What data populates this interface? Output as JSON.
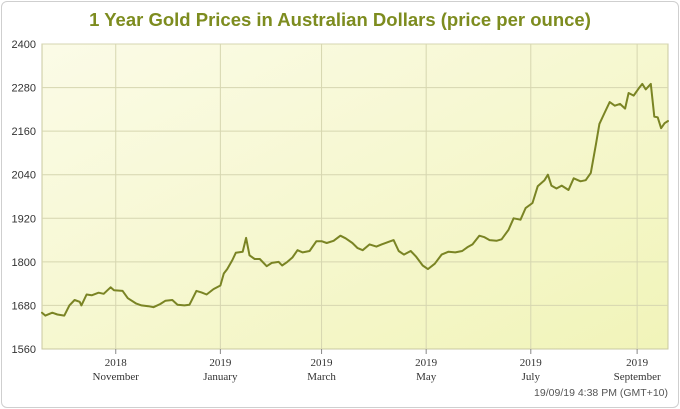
{
  "chart_data": {
    "type": "line",
    "title": "1 Year Gold Prices in Australian Dollars (price per ounce)",
    "xlabel": "",
    "ylabel": "",
    "ylim": [
      1560,
      2400
    ],
    "yticks": [
      1560,
      1680,
      1800,
      1920,
      2040,
      2160,
      2280,
      2400
    ],
    "xticks": [
      {
        "year": "2018",
        "month": "November",
        "date": "2018-11-01"
      },
      {
        "year": "2019",
        "month": "January",
        "date": "2019-01-01"
      },
      {
        "year": "2019",
        "month": "March",
        "date": "2019-03-01"
      },
      {
        "year": "2019",
        "month": "May",
        "date": "2019-05-01"
      },
      {
        "year": "2019",
        "month": "July",
        "date": "2019-07-01"
      },
      {
        "year": "2019",
        "month": "September",
        "date": "2019-09-01"
      }
    ],
    "xlim": [
      "2018-09-19",
      "2019-09-19"
    ],
    "grid": true,
    "line_color": "#7a8424",
    "series": [
      {
        "name": "",
        "points": [
          [
            "2018-09-19",
            1660
          ],
          [
            "2018-09-21",
            1652
          ],
          [
            "2018-09-25",
            1660
          ],
          [
            "2018-09-28",
            1655
          ],
          [
            "2018-10-02",
            1652
          ],
          [
            "2018-10-05",
            1680
          ],
          [
            "2018-10-08",
            1695
          ],
          [
            "2018-10-11",
            1690
          ],
          [
            "2018-10-12",
            1680
          ],
          [
            "2018-10-15",
            1710
          ],
          [
            "2018-10-18",
            1708
          ],
          [
            "2018-10-22",
            1715
          ],
          [
            "2018-10-25",
            1712
          ],
          [
            "2018-10-29",
            1730
          ],
          [
            "2018-10-31",
            1722
          ],
          [
            "2018-11-05",
            1720
          ],
          [
            "2018-11-08",
            1700
          ],
          [
            "2018-11-13",
            1685
          ],
          [
            "2018-11-16",
            1680
          ],
          [
            "2018-11-20",
            1678
          ],
          [
            "2018-11-23",
            1675
          ],
          [
            "2018-11-27",
            1684
          ],
          [
            "2018-11-30",
            1693
          ],
          [
            "2018-12-04",
            1695
          ],
          [
            "2018-12-07",
            1682
          ],
          [
            "2018-12-11",
            1680
          ],
          [
            "2018-12-14",
            1682
          ],
          [
            "2018-12-18",
            1720
          ],
          [
            "2018-12-21",
            1716
          ],
          [
            "2018-12-24",
            1710
          ],
          [
            "2018-12-28",
            1725
          ],
          [
            "2019-01-01",
            1735
          ],
          [
            "2019-01-03",
            1768
          ],
          [
            "2019-01-05",
            1780
          ],
          [
            "2019-01-08",
            1805
          ],
          [
            "2019-01-10",
            1825
          ],
          [
            "2019-01-14",
            1828
          ],
          [
            "2019-01-16",
            1866
          ],
          [
            "2019-01-18",
            1818
          ],
          [
            "2019-01-21",
            1808
          ],
          [
            "2019-01-24",
            1808
          ],
          [
            "2019-01-28",
            1788
          ],
          [
            "2019-01-31",
            1797
          ],
          [
            "2019-02-04",
            1800
          ],
          [
            "2019-02-06",
            1790
          ],
          [
            "2019-02-09",
            1800
          ],
          [
            "2019-02-12",
            1812
          ],
          [
            "2019-02-15",
            1832
          ],
          [
            "2019-02-18",
            1826
          ],
          [
            "2019-02-22",
            1830
          ],
          [
            "2019-02-26",
            1857
          ],
          [
            "2019-03-01",
            1857
          ],
          [
            "2019-03-04",
            1852
          ],
          [
            "2019-03-08",
            1858
          ],
          [
            "2019-03-12",
            1872
          ],
          [
            "2019-03-15",
            1865
          ],
          [
            "2019-03-19",
            1852
          ],
          [
            "2019-03-22",
            1838
          ],
          [
            "2019-03-25",
            1832
          ],
          [
            "2019-03-29",
            1848
          ],
          [
            "2019-04-02",
            1842
          ],
          [
            "2019-04-05",
            1848
          ],
          [
            "2019-04-09",
            1855
          ],
          [
            "2019-04-12",
            1860
          ],
          [
            "2019-04-15",
            1830
          ],
          [
            "2019-04-18",
            1820
          ],
          [
            "2019-04-22",
            1830
          ],
          [
            "2019-04-25",
            1815
          ],
          [
            "2019-04-29",
            1790
          ],
          [
            "2019-05-02",
            1780
          ],
          [
            "2019-05-06",
            1795
          ],
          [
            "2019-05-10",
            1820
          ],
          [
            "2019-05-14",
            1828
          ],
          [
            "2019-05-18",
            1826
          ],
          [
            "2019-05-22",
            1830
          ],
          [
            "2019-05-25",
            1840
          ],
          [
            "2019-05-28",
            1848
          ],
          [
            "2019-06-01",
            1872
          ],
          [
            "2019-06-04",
            1868
          ],
          [
            "2019-06-07",
            1860
          ],
          [
            "2019-06-11",
            1858
          ],
          [
            "2019-06-14",
            1862
          ],
          [
            "2019-06-18",
            1888
          ],
          [
            "2019-06-21",
            1920
          ],
          [
            "2019-06-25",
            1916
          ],
          [
            "2019-06-28",
            1948
          ],
          [
            "2019-07-02",
            1962
          ],
          [
            "2019-07-05",
            2008
          ],
          [
            "2019-07-09",
            2025
          ],
          [
            "2019-07-11",
            2040
          ],
          [
            "2019-07-13",
            2010
          ],
          [
            "2019-07-16",
            2002
          ],
          [
            "2019-07-19",
            2010
          ],
          [
            "2019-07-23",
            1998
          ],
          [
            "2019-07-26",
            2030
          ],
          [
            "2019-07-30",
            2022
          ],
          [
            "2019-08-02",
            2025
          ],
          [
            "2019-08-05",
            2045
          ],
          [
            "2019-08-08",
            2125
          ],
          [
            "2019-08-10",
            2180
          ],
          [
            "2019-08-13",
            2210
          ],
          [
            "2019-08-16",
            2240
          ],
          [
            "2019-08-19",
            2230
          ],
          [
            "2019-08-22",
            2235
          ],
          [
            "2019-08-25",
            2222
          ],
          [
            "2019-08-27",
            2265
          ],
          [
            "2019-08-30",
            2258
          ],
          [
            "2019-09-02",
            2278
          ],
          [
            "2019-09-04",
            2290
          ],
          [
            "2019-09-06",
            2275
          ],
          [
            "2019-09-09",
            2290
          ],
          [
            "2019-09-11",
            2200
          ],
          [
            "2019-09-13",
            2198
          ],
          [
            "2019-09-15",
            2168
          ],
          [
            "2019-09-17",
            2182
          ],
          [
            "2019-09-19",
            2188
          ]
        ]
      }
    ]
  },
  "footer": {
    "timestamp": "19/09/19 4:38 PM (GMT+10)"
  }
}
